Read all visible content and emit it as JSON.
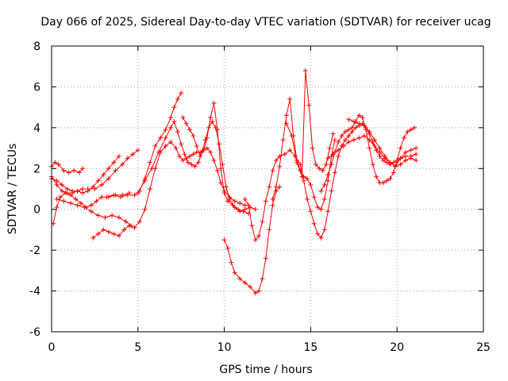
{
  "chart_data": {
    "type": "scatter",
    "title": "Day 066 of 2025, Sidereal Day-to-day VTEC variation (SDTVAR) for receiver ucag",
    "xlabel": "GPS time / hours",
    "ylabel": "SDTVAR / TECUs",
    "xlim": [
      0,
      25
    ],
    "ylim": [
      -6,
      8
    ],
    "xticks": [
      0,
      5,
      10,
      15,
      20,
      25
    ],
    "yticks": [
      -6,
      -4,
      -2,
      0,
      2,
      4,
      6,
      8
    ],
    "grid": true,
    "marker": "plus",
    "color": "#ff0000",
    "series": [
      {
        "x": [
          0.0,
          0.2,
          0.4,
          0.7,
          1.0,
          1.3,
          1.6,
          1.8
        ],
        "y": [
          2.1,
          2.3,
          2.2,
          1.9,
          1.8,
          1.9,
          1.8,
          2.0
        ]
      },
      {
        "x": [
          0.0,
          0.3,
          0.6,
          0.9,
          1.2,
          1.5,
          1.8,
          2.1,
          2.5,
          2.9,
          3.3,
          3.7,
          4.1,
          4.4,
          4.7,
          5.0
        ],
        "y": [
          1.5,
          1.4,
          1.2,
          1.0,
          0.9,
          0.9,
          1.0,
          1.0,
          1.0,
          1.2,
          1.5,
          1.9,
          2.2,
          2.5,
          2.7,
          2.9
        ]
      },
      {
        "x": [
          0.0,
          0.3,
          0.6,
          0.9,
          1.2,
          1.5,
          1.8,
          2.1,
          2.4,
          2.7,
          3.0,
          3.3,
          3.6,
          3.9
        ],
        "y": [
          1.6,
          1.2,
          0.9,
          0.8,
          0.8,
          0.9,
          0.8,
          0.9,
          1.1,
          1.4,
          1.7,
          2.0,
          2.3,
          2.6
        ]
      },
      {
        "x": [
          0.1,
          0.3,
          0.5,
          0.8,
          1.1,
          1.4,
          1.7,
          2.0,
          2.3,
          2.6,
          2.9,
          3.3,
          3.7,
          4.1,
          4.5
        ],
        "y": [
          -0.7,
          0.1,
          0.6,
          0.8,
          0.7,
          0.5,
          0.3,
          0.1,
          0.2,
          0.4,
          0.6,
          0.6,
          0.7,
          0.7,
          0.8
        ]
      },
      {
        "x": [
          0.3,
          0.7,
          1.1,
          1.5,
          1.9,
          2.3,
          2.7,
          3.1,
          3.5,
          3.9,
          4.3,
          4.6
        ],
        "y": [
          0.5,
          0.4,
          0.3,
          0.2,
          0.1,
          -0.1,
          -0.3,
          -0.4,
          -0.3,
          -0.4,
          -0.6,
          -0.8
        ]
      },
      {
        "x": [
          2.4,
          2.7,
          3.0,
          3.3,
          3.6,
          3.9,
          4.2,
          4.5,
          4.8,
          5.1,
          5.4,
          5.7,
          6.0,
          6.3,
          6.6,
          6.9,
          7.2,
          7.4,
          7.6,
          7.8,
          8.0,
          8.2,
          8.4,
          8.6,
          8.8,
          9.0,
          9.2,
          9.4,
          9.6,
          9.8,
          10.0,
          10.3,
          10.6,
          10.9,
          11.2
        ],
        "y": [
          -1.4,
          -1.2,
          -1.0,
          -1.1,
          -1.2,
          -1.3,
          -1.0,
          -0.8,
          -0.9,
          -0.6,
          0.0,
          1.0,
          2.0,
          2.8,
          3.1,
          3.3,
          3.0,
          2.6,
          2.4,
          2.5,
          2.6,
          2.7,
          2.8,
          2.8,
          2.9,
          3.0,
          2.8,
          2.4,
          1.9,
          1.3,
          0.9,
          0.6,
          0.4,
          0.3,
          0.2
        ]
      },
      {
        "x": [
          3.2,
          3.6,
          4.0,
          4.4,
          4.8,
          5.1,
          5.4,
          5.7,
          6.0,
          6.3,
          6.6,
          6.9,
          7.1,
          7.3,
          7.5
        ],
        "y": [
          0.6,
          0.7,
          0.6,
          0.7,
          0.7,
          0.9,
          1.5,
          2.3,
          3.1,
          3.5,
          3.9,
          4.5,
          5.0,
          5.4,
          5.7
        ]
      },
      {
        "x": [
          5.0,
          5.4,
          5.8,
          6.2,
          6.6,
          6.9,
          7.1,
          7.3,
          7.5,
          7.7,
          7.9,
          8.1,
          8.3,
          8.5,
          8.7,
          8.9,
          9.1,
          9.3,
          9.5,
          9.7,
          9.9,
          10.1,
          10.3,
          10.6,
          10.9,
          11.2,
          11.5,
          11.8
        ],
        "y": [
          0.8,
          1.4,
          2.0,
          2.8,
          3.5,
          4.0,
          4.3,
          3.8,
          3.2,
          2.7,
          2.3,
          2.2,
          2.1,
          2.3,
          2.8,
          3.4,
          4.0,
          4.3,
          4.0,
          3.2,
          2.2,
          1.1,
          0.5,
          0.1,
          -0.1,
          0.0,
          0.1,
          0.0
        ]
      },
      {
        "x": [
          7.6,
          7.8,
          8.0,
          8.2,
          8.4,
          8.6,
          8.8,
          9.0,
          9.2,
          9.4,
          9.6,
          9.8,
          10.0,
          10.2,
          10.5,
          10.8,
          11.1,
          11.4
        ],
        "y": [
          4.5,
          4.2,
          3.9,
          3.6,
          3.1,
          2.6,
          2.9,
          3.5,
          4.5,
          5.2,
          3.9,
          2.0,
          0.8,
          0.4,
          0.2,
          0.0,
          -0.1,
          -0.2
        ]
      },
      {
        "x": [
          10.0,
          10.2,
          10.4,
          10.6,
          10.9,
          11.2,
          11.5,
          11.8,
          12.0,
          12.2,
          12.4,
          12.6,
          12.8,
          13.0,
          13.2
        ],
        "y": [
          -1.5,
          -1.9,
          -2.6,
          -3.1,
          -3.4,
          -3.6,
          -3.8,
          -4.1,
          -4.0,
          -3.4,
          -2.4,
          -1.0,
          0.2,
          0.9,
          1.1
        ]
      },
      {
        "x": [
          11.2,
          11.4,
          11.6,
          11.8,
          12.0,
          12.2,
          12.4,
          12.6,
          12.8,
          13.0,
          13.2,
          13.5,
          13.8,
          14.1,
          14.4,
          14.6,
          14.8,
          15.0,
          15.2,
          15.4,
          15.6,
          15.8,
          16.0,
          16.2,
          16.4,
          16.6,
          16.8,
          17.0,
          17.2,
          17.4,
          17.6,
          17.8,
          18.0,
          18.2,
          18.4,
          18.6,
          18.8,
          19.0,
          19.2,
          19.4,
          19.6,
          19.8,
          20.0,
          20.2,
          20.5,
          20.8,
          21.1
        ],
        "y": [
          0.5,
          0.2,
          -0.8,
          -1.5,
          -1.3,
          -0.6,
          0.4,
          1.1,
          1.9,
          2.4,
          2.6,
          2.7,
          2.9,
          2.6,
          2.2,
          1.4,
          0.5,
          -0.1,
          -0.7,
          -1.2,
          -1.4,
          -1.0,
          -0.1,
          0.9,
          1.8,
          2.6,
          3.1,
          3.4,
          3.6,
          3.8,
          4.0,
          4.1,
          4.2,
          4.0,
          3.7,
          3.3,
          2.9,
          2.6,
          2.4,
          2.3,
          2.2,
          2.3,
          2.4,
          2.5,
          2.6,
          2.6,
          2.7
        ]
      },
      {
        "x": [
          12.8,
          13.0,
          13.2,
          13.4,
          13.6,
          13.8,
          14.0,
          14.2,
          14.4,
          14.6,
          14.8,
          15.0,
          15.2,
          15.4,
          15.6,
          15.8,
          16.0,
          16.2,
          16.4
        ],
        "y": [
          0.5,
          1.1,
          2.1,
          3.4,
          4.6,
          5.4,
          3.6,
          2.4,
          1.9,
          1.6,
          1.5,
          1.2,
          0.6,
          0.1,
          0.0,
          0.5,
          1.4,
          2.6,
          3.4
        ]
      },
      {
        "x": [
          13.6,
          13.9,
          14.2,
          14.5,
          14.7,
          14.9,
          15.1,
          15.3,
          15.5,
          15.7,
          15.9,
          16.1,
          16.3
        ],
        "y": [
          4.2,
          3.6,
          2.3,
          1.6,
          6.8,
          5.1,
          3.0,
          2.2,
          2.0,
          1.9,
          2.2,
          3.0,
          3.7
        ]
      },
      {
        "x": [
          15.6,
          15.8,
          16.0,
          16.2,
          16.4,
          16.6,
          16.8,
          17.0,
          17.2,
          17.4,
          17.6,
          17.8,
          18.0,
          18.2,
          18.4,
          18.6,
          18.8,
          19.0,
          19.2,
          19.4,
          19.6,
          19.8,
          20.0,
          20.2,
          20.4,
          20.6,
          20.8,
          21.0
        ],
        "y": [
          0.9,
          1.2,
          1.7,
          2.2,
          2.8,
          3.3,
          3.6,
          3.8,
          3.9,
          4.0,
          4.3,
          4.6,
          4.5,
          3.9,
          3.0,
          2.2,
          1.6,
          1.3,
          1.3,
          1.4,
          1.5,
          1.8,
          2.4,
          3.0,
          3.5,
          3.8,
          3.9,
          4.0
        ]
      },
      {
        "x": [
          16.0,
          16.3,
          16.6,
          16.9,
          17.2,
          17.5,
          17.8,
          18.1,
          18.4,
          18.7,
          19.0,
          19.3,
          19.6,
          19.9,
          20.2,
          20.5,
          20.8,
          21.1
        ],
        "y": [
          2.5,
          2.7,
          2.9,
          3.1,
          3.3,
          3.4,
          3.5,
          3.6,
          3.4,
          3.1,
          2.8,
          2.5,
          2.3,
          2.1,
          2.2,
          2.4,
          2.5,
          2.4
        ]
      },
      {
        "x": [
          17.2,
          17.5,
          17.8,
          18.1,
          18.4,
          18.7,
          19.0,
          19.3,
          19.6,
          19.9,
          20.2,
          20.5,
          20.8,
          21.1
        ],
        "y": [
          4.4,
          4.3,
          4.2,
          4.1,
          3.8,
          3.4,
          3.0,
          2.6,
          2.3,
          2.1,
          2.5,
          2.8,
          2.9,
          3.0
        ]
      }
    ]
  }
}
